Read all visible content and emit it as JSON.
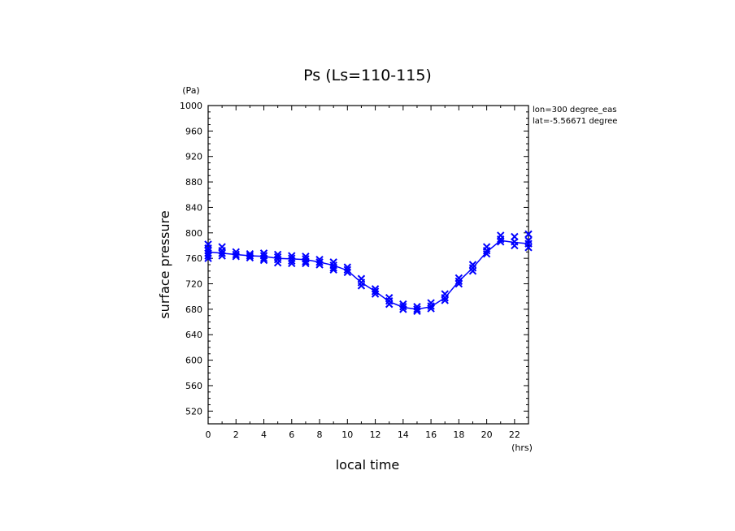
{
  "chart_data": {
    "type": "line",
    "title": "Ps (Ls=110-115)",
    "xlabel": "local time",
    "ylabel": "surface pressure",
    "x_unit": "(hrs)",
    "y_unit": "(Pa)",
    "xlim": [
      0,
      23
    ],
    "ylim": [
      500,
      1000
    ],
    "x_ticks": [
      0,
      2,
      4,
      6,
      8,
      10,
      12,
      14,
      16,
      18,
      20,
      22
    ],
    "y_ticks": [
      520,
      560,
      600,
      640,
      680,
      720,
      760,
      800,
      840,
      880,
      920,
      960,
      1000
    ],
    "annotations": [
      "lon=300 degree_eas",
      "lat=-5.56671 degree"
    ],
    "series_color": "#0000ff",
    "series": [
      {
        "x": [
          0,
          1,
          2,
          3,
          4,
          5,
          6,
          7,
          8,
          9,
          10,
          11,
          12,
          13,
          14,
          15,
          16,
          17,
          18,
          19,
          20,
          21,
          22,
          23
        ],
        "values": [
          770,
          768,
          766,
          764,
          763,
          760,
          759,
          758,
          754,
          749,
          741,
          722,
          708,
          692,
          683,
          680,
          684,
          698,
          724,
          745,
          770,
          788,
          785,
          783
        ]
      }
    ],
    "scatter_points": [
      {
        "x": 0,
        "y": [
          782,
          776,
          772,
          768,
          764,
          760
        ]
      },
      {
        "x": 1,
        "y": [
          778,
          772,
          768,
          764
        ]
      },
      {
        "x": 2,
        "y": [
          770,
          766,
          763
        ]
      },
      {
        "x": 3,
        "y": [
          767,
          764,
          761
        ]
      },
      {
        "x": 4,
        "y": [
          768,
          764,
          760,
          757
        ]
      },
      {
        "x": 5,
        "y": [
          766,
          762,
          758,
          753
        ]
      },
      {
        "x": 6,
        "y": [
          764,
          760,
          756,
          752
        ]
      },
      {
        "x": 7,
        "y": [
          763,
          759,
          755,
          752
        ]
      },
      {
        "x": 8,
        "y": [
          758,
          754,
          750
        ]
      },
      {
        "x": 9,
        "y": [
          754,
          749,
          745,
          742
        ]
      },
      {
        "x": 10,
        "y": [
          746,
          742,
          738
        ]
      },
      {
        "x": 11,
        "y": [
          728,
          722,
          717
        ]
      },
      {
        "x": 12,
        "y": [
          712,
          708,
          704
        ]
      },
      {
        "x": 13,
        "y": [
          698,
          693,
          688
        ]
      },
      {
        "x": 14,
        "y": [
          688,
          684,
          680
        ]
      },
      {
        "x": 15,
        "y": [
          684,
          680,
          677
        ]
      },
      {
        "x": 16,
        "y": [
          690,
          685,
          681
        ]
      },
      {
        "x": 17,
        "y": [
          704,
          698,
          694
        ]
      },
      {
        "x": 18,
        "y": [
          729,
          724,
          720
        ]
      },
      {
        "x": 19,
        "y": [
          750,
          745,
          740
        ]
      },
      {
        "x": 20,
        "y": [
          778,
          772,
          767
        ]
      },
      {
        "x": 21,
        "y": [
          796,
          790,
          786
        ]
      },
      {
        "x": 22,
        "y": [
          794,
          786,
          780
        ]
      },
      {
        "x": 23,
        "y": [
          798,
          788,
          783,
          777
        ]
      }
    ]
  }
}
